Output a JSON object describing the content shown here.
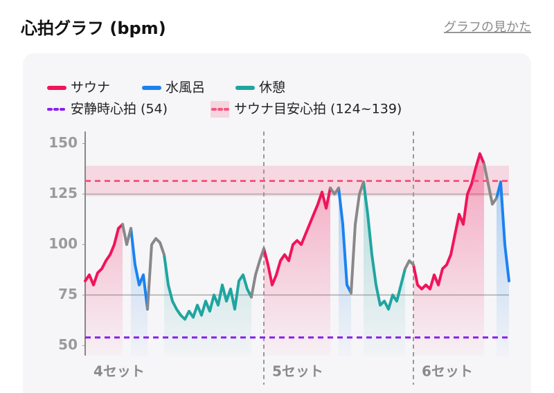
{
  "header": {
    "title": "心拍グラフ (bpm)",
    "link": "グラフの見かた"
  },
  "chart_data": {
    "type": "line",
    "ylim": [
      45,
      156
    ],
    "yticks": [
      50,
      75,
      100,
      125,
      150
    ],
    "grid_values": [
      75,
      125
    ],
    "xlim": [
      0,
      102
    ],
    "sets": [
      {
        "label": "4セット",
        "start": 0
      },
      {
        "label": "5セット",
        "start": 43
      },
      {
        "label": "6セット",
        "start": 79
      }
    ],
    "series": [
      {
        "name": "サウナ",
        "color": "#f0145a",
        "x": [
          0,
          1,
          2,
          3,
          4,
          5,
          6,
          7,
          8,
          9,
          null,
          43,
          44,
          45,
          46,
          47,
          48,
          49,
          50,
          51,
          52,
          53,
          54,
          55,
          56,
          57,
          58,
          59,
          null,
          79,
          80,
          81,
          82,
          83,
          84,
          85,
          86,
          87,
          88,
          89,
          90,
          91,
          92,
          93,
          94,
          95,
          96
        ],
        "values": [
          82,
          85,
          80,
          86,
          88,
          92,
          95,
          100,
          108,
          110,
          null,
          98,
          90,
          80,
          85,
          92,
          95,
          92,
          100,
          102,
          100,
          105,
          110,
          115,
          120,
          126,
          118,
          128,
          null,
          90,
          80,
          78,
          80,
          78,
          85,
          80,
          88,
          90,
          95,
          105,
          115,
          110,
          125,
          130,
          138,
          145,
          140
        ]
      },
      {
        "name": "水風呂",
        "color": "#1a82f0",
        "x": [
          11,
          12,
          13,
          14,
          15,
          null,
          61,
          62,
          63,
          64,
          null,
          99,
          100,
          101,
          102
        ],
        "values": [
          108,
          90,
          80,
          85,
          68,
          null,
          128,
          110,
          80,
          76,
          null,
          123,
          131,
          100,
          82
        ]
      },
      {
        "name": "休憩",
        "color": "#1fa5a0",
        "x": [
          19,
          20,
          21,
          22,
          23,
          24,
          25,
          26,
          27,
          28,
          29,
          30,
          31,
          32,
          33,
          34,
          35,
          36,
          37,
          38,
          39,
          40,
          null,
          67,
          68,
          69,
          70,
          71,
          72,
          73,
          74,
          75,
          76,
          77
        ],
        "values": [
          95,
          80,
          72,
          68,
          65,
          63,
          67,
          64,
          70,
          65,
          72,
          67,
          75,
          70,
          80,
          72,
          78,
          68,
          82,
          85,
          78,
          74,
          null,
          131,
          115,
          95,
          80,
          70,
          72,
          68,
          75,
          72,
          80,
          88
        ]
      },
      {
        "color": "#888888",
        "x": [
          9,
          10,
          11,
          null,
          15,
          16,
          17,
          18,
          19,
          null,
          40,
          41,
          42,
          43,
          null,
          59,
          60,
          61,
          null,
          64,
          65,
          66,
          67,
          null,
          77,
          78,
          79,
          null,
          96,
          97,
          98,
          99
        ],
        "values": [
          110,
          100,
          108,
          null,
          68,
          100,
          103,
          101,
          95,
          null,
          74,
          85,
          92,
          98,
          null,
          128,
          125,
          128,
          null,
          76,
          110,
          125,
          131,
          null,
          88,
          92,
          90,
          null,
          140,
          130,
          120,
          123
        ]
      }
    ],
    "references": [
      {
        "label": "安静時心拍 (54)",
        "value": 54,
        "color": "#8a1ef0"
      },
      {
        "label": "サウナ目安心拍 (124~139)",
        "range": [
          124,
          139
        ],
        "color": "#f5577f"
      }
    ]
  }
}
